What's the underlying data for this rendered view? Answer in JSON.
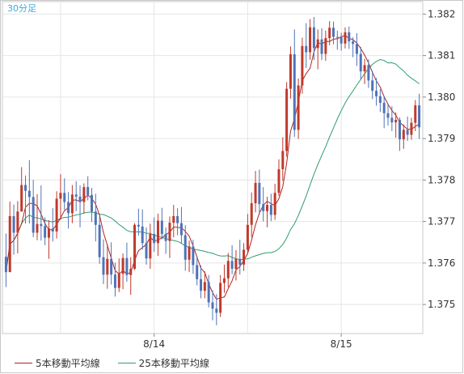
{
  "chart_data": {
    "type": "candlestick",
    "timeframe_label": "30分足",
    "title": "",
    "xlabel": "",
    "ylabel": "",
    "ylim": [
      1.3743,
      1.3823
    ],
    "y_ticks": [
      "1.375",
      "1.376",
      "1.377",
      "1.378",
      "1.379",
      "1.380",
      "1.381",
      "1.382"
    ],
    "x_ticks": [
      {
        "label": "8/14",
        "index": 38
      },
      {
        "label": "8/15",
        "index": 86
      }
    ],
    "grid": true,
    "legend_placement": "bottom",
    "candles": [
      [
        1.37615,
        1.37671,
        1.37542,
        1.37578
      ],
      [
        1.37578,
        1.37748,
        1.37578,
        1.37713
      ],
      [
        1.37713,
        1.37741,
        1.3762,
        1.37673
      ],
      [
        1.37673,
        1.37749,
        1.37623,
        1.37724
      ],
      [
        1.37724,
        1.37831,
        1.37724,
        1.37788
      ],
      [
        1.37788,
        1.37811,
        1.37695,
        1.37774
      ],
      [
        1.37774,
        1.37848,
        1.37695,
        1.37759
      ],
      [
        1.37759,
        1.378,
        1.37662,
        1.37673
      ],
      [
        1.37673,
        1.37766,
        1.37655,
        1.37694
      ],
      [
        1.37694,
        1.37787,
        1.37654,
        1.37689
      ],
      [
        1.37689,
        1.3771,
        1.37643,
        1.37661
      ],
      [
        1.37661,
        1.37703,
        1.3761,
        1.37683
      ],
      [
        1.37683,
        1.37732,
        1.37652,
        1.37676
      ],
      [
        1.37676,
        1.37773,
        1.37659,
        1.37755
      ],
      [
        1.37755,
        1.37814,
        1.37704,
        1.37769
      ],
      [
        1.37769,
        1.37804,
        1.37728,
        1.37747
      ],
      [
        1.37747,
        1.37771,
        1.37683,
        1.3772
      ],
      [
        1.3772,
        1.37788,
        1.37696,
        1.37765
      ],
      [
        1.37765,
        1.37797,
        1.37725,
        1.3776
      ],
      [
        1.3776,
        1.37787,
        1.37686,
        1.37747
      ],
      [
        1.37747,
        1.37792,
        1.37719,
        1.37783
      ],
      [
        1.37783,
        1.37809,
        1.37751,
        1.37764
      ],
      [
        1.37764,
        1.37781,
        1.37699,
        1.37724
      ],
      [
        1.37724,
        1.37767,
        1.37652,
        1.37692
      ],
      [
        1.37692,
        1.37711,
        1.37598,
        1.37614
      ],
      [
        1.37614,
        1.37657,
        1.37549,
        1.37572
      ],
      [
        1.37572,
        1.37645,
        1.37538,
        1.3761
      ],
      [
        1.3761,
        1.3765,
        1.37548,
        1.37572
      ],
      [
        1.37572,
        1.37601,
        1.37519,
        1.3754
      ],
      [
        1.3754,
        1.37611,
        1.3753,
        1.37574
      ],
      [
        1.37574,
        1.37623,
        1.37537,
        1.37612
      ],
      [
        1.37612,
        1.37649,
        1.37555,
        1.37571
      ],
      [
        1.37571,
        1.37614,
        1.37523,
        1.37586
      ],
      [
        1.37586,
        1.37696,
        1.37583,
        1.37692
      ],
      [
        1.37692,
        1.37731,
        1.37666,
        1.37688
      ],
      [
        1.37688,
        1.37729,
        1.37632,
        1.37648
      ],
      [
        1.37648,
        1.37686,
        1.37596,
        1.37611
      ],
      [
        1.37611,
        1.37695,
        1.37586,
        1.3767
      ],
      [
        1.3767,
        1.3771,
        1.37627,
        1.37648
      ],
      [
        1.37648,
        1.37719,
        1.37617,
        1.37702
      ],
      [
        1.37702,
        1.37733,
        1.37657,
        1.3767
      ],
      [
        1.3767,
        1.37686,
        1.37622,
        1.37653
      ],
      [
        1.37653,
        1.37712,
        1.37612,
        1.37697
      ],
      [
        1.37697,
        1.3774,
        1.37662,
        1.37713
      ],
      [
        1.37713,
        1.37732,
        1.37667,
        1.37696
      ],
      [
        1.37696,
        1.37735,
        1.37647,
        1.37667
      ],
      [
        1.37667,
        1.37691,
        1.37581,
        1.37608
      ],
      [
        1.37608,
        1.37654,
        1.37578,
        1.3764
      ],
      [
        1.3764,
        1.37656,
        1.37574,
        1.37595
      ],
      [
        1.37595,
        1.37617,
        1.37546,
        1.37561
      ],
      [
        1.37561,
        1.37594,
        1.37515,
        1.37533
      ],
      [
        1.37533,
        1.3758,
        1.37515,
        1.37554
      ],
      [
        1.37554,
        1.37571,
        1.37493,
        1.37505
      ],
      [
        1.37505,
        1.37534,
        1.37462,
        1.3749
      ],
      [
        1.3749,
        1.37525,
        1.3745,
        1.3748
      ],
      [
        1.3748,
        1.37571,
        1.3747,
        1.37552
      ],
      [
        1.37552,
        1.37596,
        1.37528,
        1.37563
      ],
      [
        1.37563,
        1.37624,
        1.37541,
        1.37605
      ],
      [
        1.37605,
        1.37643,
        1.37573,
        1.37586
      ],
      [
        1.37586,
        1.37631,
        1.37558,
        1.3761
      ],
      [
        1.3761,
        1.37656,
        1.37572,
        1.37596
      ],
      [
        1.37596,
        1.37648,
        1.37581,
        1.37632
      ],
      [
        1.37632,
        1.37718,
        1.37623,
        1.37692
      ],
      [
        1.37692,
        1.3777,
        1.37662,
        1.37744
      ],
      [
        1.37744,
        1.37822,
        1.37722,
        1.37793
      ],
      [
        1.37793,
        1.37825,
        1.37716,
        1.37742
      ],
      [
        1.37742,
        1.37783,
        1.377,
        1.37725
      ],
      [
        1.37725,
        1.3776,
        1.37686,
        1.3774
      ],
      [
        1.3774,
        1.37767,
        1.37701,
        1.37716
      ],
      [
        1.37716,
        1.37791,
        1.37704,
        1.37769
      ],
      [
        1.37769,
        1.3785,
        1.37762,
        1.37826
      ],
      [
        1.37826,
        1.37903,
        1.37798,
        1.3787
      ],
      [
        1.3787,
        1.38036,
        1.37856,
        1.3802
      ],
      [
        1.3802,
        1.38122,
        1.37996,
        1.38103
      ],
      [
        1.38103,
        1.38163,
        1.37904,
        1.37921
      ],
      [
        1.37921,
        1.38045,
        1.37899,
        1.38028
      ],
      [
        1.38028,
        1.38143,
        1.38008,
        1.38123
      ],
      [
        1.38123,
        1.38178,
        1.3807,
        1.38108
      ],
      [
        1.38108,
        1.38188,
        1.3809,
        1.38168
      ],
      [
        1.38168,
        1.38193,
        1.38089,
        1.38118
      ],
      [
        1.38118,
        1.38163,
        1.38067,
        1.38139
      ],
      [
        1.38139,
        1.38166,
        1.38089,
        1.38104
      ],
      [
        1.38104,
        1.3816,
        1.38087,
        1.38142
      ],
      [
        1.38142,
        1.38183,
        1.38125,
        1.38167
      ],
      [
        1.38167,
        1.38182,
        1.38127,
        1.38145
      ],
      [
        1.38145,
        1.3816,
        1.38114,
        1.38144
      ],
      [
        1.38144,
        1.38155,
        1.38112,
        1.38129
      ],
      [
        1.38129,
        1.38168,
        1.38117,
        1.38156
      ],
      [
        1.38156,
        1.3817,
        1.38116,
        1.38134
      ],
      [
        1.38134,
        1.38144,
        1.38096,
        1.38128
      ],
      [
        1.38128,
        1.38154,
        1.38075,
        1.38104
      ],
      [
        1.38104,
        1.38121,
        1.38042,
        1.38062
      ],
      [
        1.38062,
        1.38092,
        1.38031,
        1.38077
      ],
      [
        1.38077,
        1.38091,
        1.38022,
        1.3804
      ],
      [
        1.3804,
        1.38063,
        1.37995,
        1.38015
      ],
      [
        1.38015,
        1.38046,
        1.37979,
        1.38002
      ],
      [
        1.38002,
        1.38019,
        1.37964,
        1.37986
      ],
      [
        1.37986,
        1.38003,
        1.37925,
        1.37961
      ],
      [
        1.37961,
        1.37983,
        1.37931,
        1.3795
      ],
      [
        1.3795,
        1.37978,
        1.37918,
        1.37939
      ],
      [
        1.37939,
        1.37963,
        1.37902,
        1.37945
      ],
      [
        1.37945,
        1.37951,
        1.3787,
        1.37898
      ],
      [
        1.37898,
        1.37934,
        1.37875,
        1.37921
      ],
      [
        1.37921,
        1.37953,
        1.37894,
        1.37909
      ],
      [
        1.37909,
        1.3795,
        1.37897,
        1.37938
      ],
      [
        1.37938,
        1.37993,
        1.37918,
        1.3798
      ],
      [
        1.3798,
        1.38008,
        1.37899,
        1.37927
      ]
    ],
    "series": [
      {
        "name": "5本移動平均線",
        "color": "#b22222",
        "values": []
      },
      {
        "name": "25本移動平均線",
        "color": "#2e9e6a",
        "values": []
      }
    ],
    "colors": {
      "up": "#c0392b",
      "down": "#4f73b8",
      "grid": "#e5e5e5",
      "axis": "#888888"
    }
  },
  "legend": {
    "ma5_label": "5本移動平均線",
    "ma25_label": "25本移動平均線"
  }
}
